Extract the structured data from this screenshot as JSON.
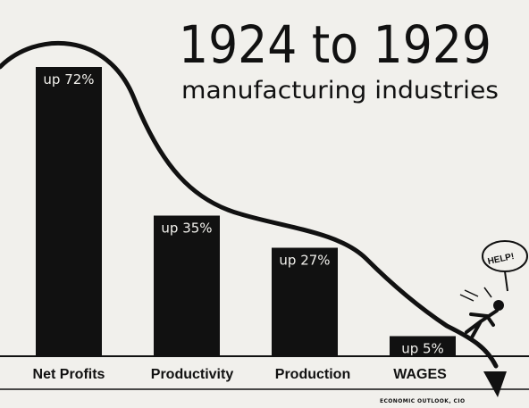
{
  "chart_data": {
    "type": "bar",
    "title": "1924 to 1929",
    "subtitle": "manufacturing industries",
    "categories": [
      "Net Profits",
      "Productivity",
      "Production",
      "WAGES"
    ],
    "values": [
      72,
      35,
      27,
      5
    ],
    "value_labels": [
      "up 72%",
      "up 35%",
      "up 27%",
      "up 5%"
    ],
    "unit": "%",
    "grid": false,
    "legend": "none",
    "annotation": "HELP!",
    "credit": "ECONOMIC OUTLOOK, CIO",
    "colors": {
      "bars": "#111111",
      "background": "#f1f0ec",
      "text": "#111111"
    }
  }
}
